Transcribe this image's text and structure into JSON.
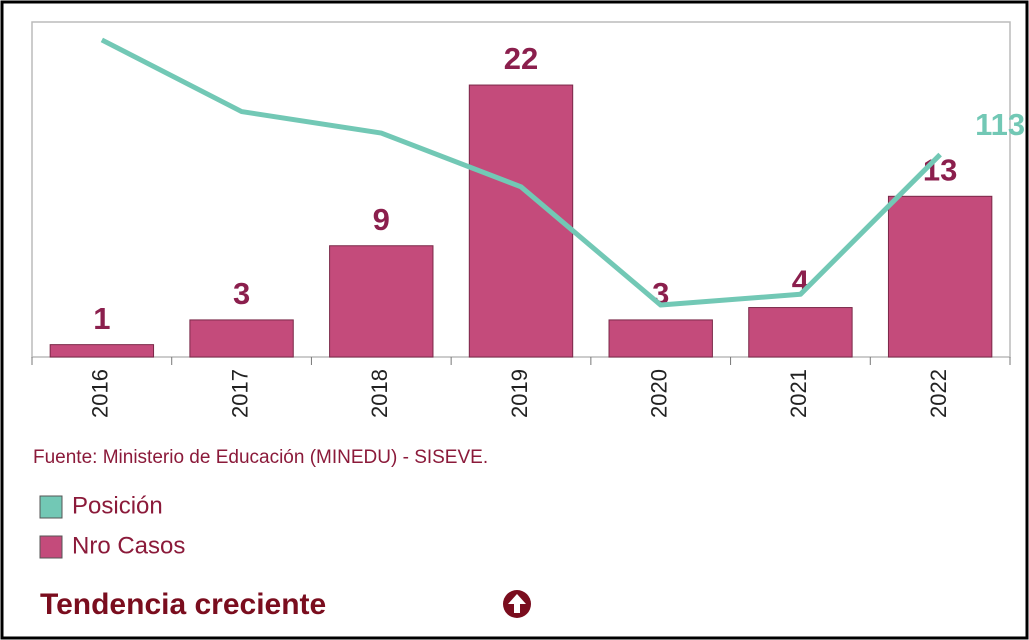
{
  "chart_data": {
    "type": "bar",
    "categories": [
      "2016",
      "2017",
      "2018",
      "2019",
      "2020",
      "2021",
      "2022"
    ],
    "series": [
      {
        "name": "Posición",
        "type": "line",
        "axis": "y2",
        "color": "#72c8b5",
        "values": [
          177,
          137,
          125,
          95,
          29,
          35,
          113
        ]
      },
      {
        "name": "Nro Casos",
        "type": "bar",
        "color": "#c44b7b",
        "values": [
          1,
          3,
          9,
          22,
          3,
          4,
          13
        ]
      }
    ],
    "ylim": [
      0,
      27.1
    ],
    "y2lim": [
      0,
      187
    ],
    "source": "Fuente: Ministerio de Educación (MINEDU) - SISEVE.",
    "trend": "Tendencia creciente"
  }
}
